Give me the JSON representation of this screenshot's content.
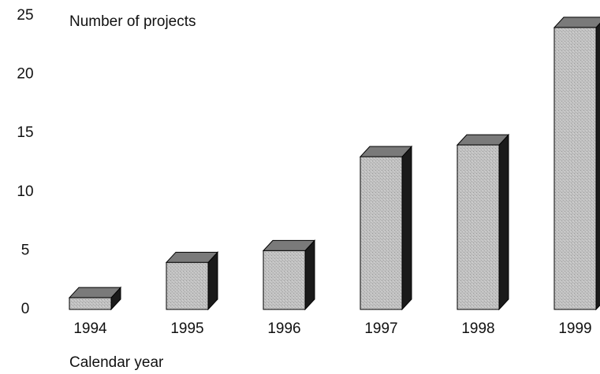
{
  "chart_data": {
    "type": "bar3d",
    "y_label": "Number of projects",
    "x_label": "Calendar year",
    "categories": [
      "1994",
      "1995",
      "1996",
      "1997",
      "1998",
      "1999"
    ],
    "values": [
      1,
      4,
      5,
      13,
      14,
      24
    ],
    "color": "#bdbdbd",
    "ylim": [
      0,
      25
    ],
    "yticks": [
      0,
      5,
      10,
      15,
      20,
      25
    ],
    "grid": false
  }
}
